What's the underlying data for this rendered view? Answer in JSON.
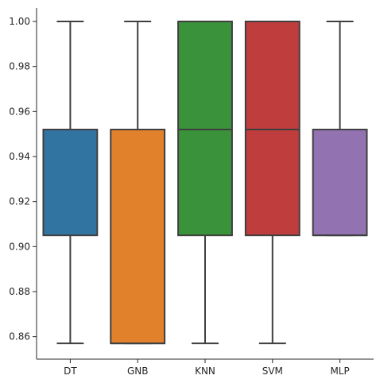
{
  "chart_data": {
    "type": "box",
    "title": "",
    "xlabel": "",
    "ylabel": "",
    "categories": [
      "DT",
      "GNB",
      "KNN",
      "SVM",
      "MLP"
    ],
    "ylim": [
      0.85,
      1.006
    ],
    "yticks": [
      0.86,
      0.88,
      0.9,
      0.92,
      0.94,
      0.96,
      0.98,
      1.0
    ],
    "ytick_labels": [
      "0.86",
      "0.88",
      "0.90",
      "0.92",
      "0.94",
      "0.96",
      "0.98",
      "1.00"
    ],
    "grid": false,
    "legend": "none",
    "boxes": [
      {
        "name": "DT",
        "min": 0.857,
        "q1": 0.905,
        "median": 0.952,
        "q3": 0.952,
        "max": 1.0,
        "color": "#3274a1"
      },
      {
        "name": "GNB",
        "min": 0.857,
        "q1": 0.857,
        "median": 0.857,
        "q3": 0.952,
        "max": 1.0,
        "color": "#e1812c"
      },
      {
        "name": "KNN",
        "min": 0.857,
        "q1": 0.905,
        "median": 0.952,
        "q3": 1.0,
        "max": 1.0,
        "color": "#3a923a"
      },
      {
        "name": "SVM",
        "min": 0.857,
        "q1": 0.905,
        "median": 0.952,
        "q3": 1.0,
        "max": 1.0,
        "color": "#c03d3e"
      },
      {
        "name": "MLP",
        "min": 0.905,
        "q1": 0.905,
        "median": 0.905,
        "q3": 0.952,
        "max": 1.0,
        "color": "#9372b2"
      }
    ]
  }
}
